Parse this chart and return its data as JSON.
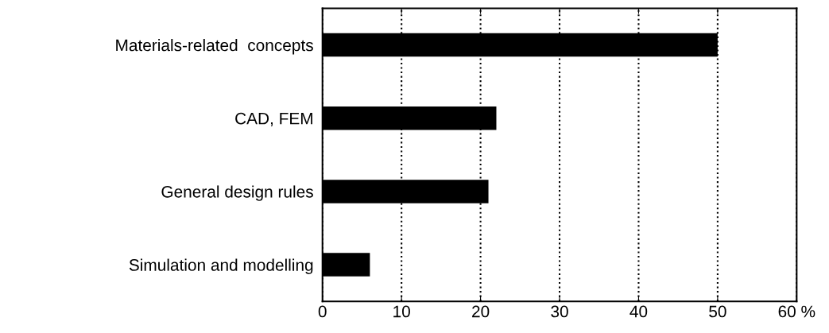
{
  "chart_data": {
    "type": "bar",
    "orientation": "horizontal",
    "categories": [
      "Materials-related  concepts",
      "CAD, FEM",
      "General design rules",
      "Simulation and modelling"
    ],
    "values": [
      50,
      22,
      21,
      6
    ],
    "color": "#000000",
    "xlim": [
      0,
      60
    ],
    "xticks": [
      0,
      10,
      20,
      30,
      40,
      50,
      {
        "value": 60,
        "label": "60 %"
      }
    ],
    "grid": "x",
    "line_style": "dotted"
  }
}
